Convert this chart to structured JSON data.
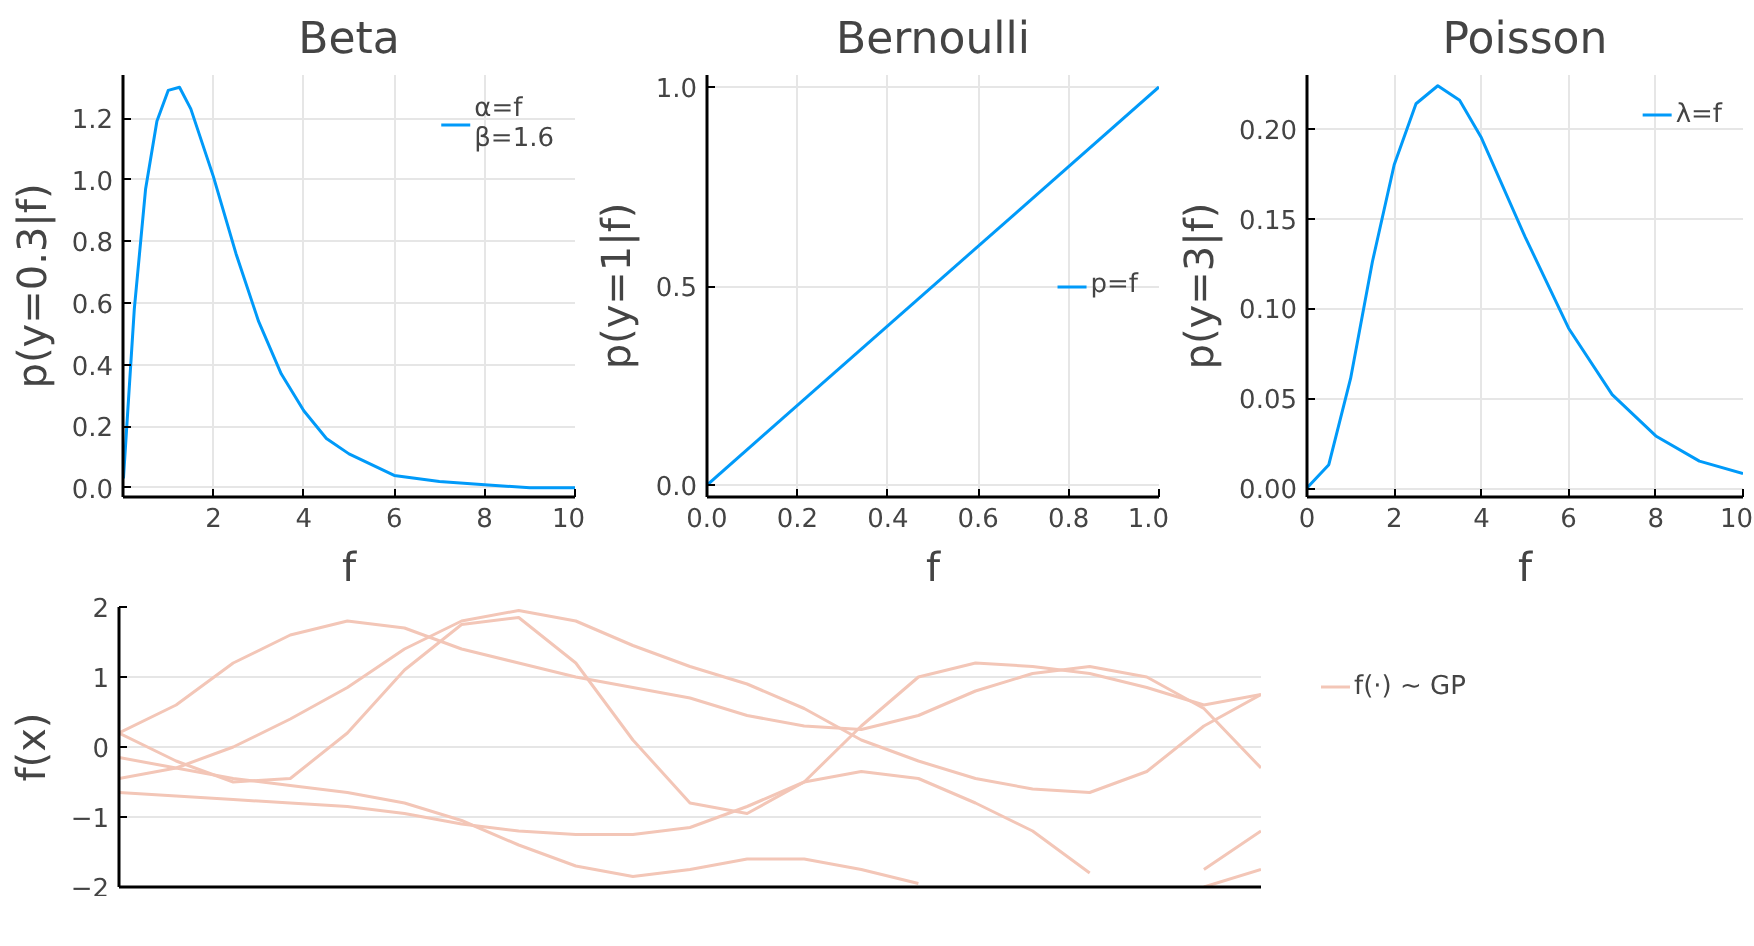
{
  "chart_data": [
    {
      "type": "line",
      "title": "Beta",
      "xlabel": "f",
      "ylabel": "p(y=0.3|f)",
      "xlim": [
        0,
        10
      ],
      "ylim": [
        -0.03,
        1.34
      ],
      "xticks": [
        2,
        4,
        6,
        8,
        10
      ],
      "yticks": [
        {
          "value": 0,
          "label": "0.0"
        },
        {
          "value": 0.2,
          "label": "0.2"
        },
        {
          "value": 0.4,
          "label": "0.4"
        },
        {
          "value": 0.6,
          "label": "0.6"
        },
        {
          "value": 0.8,
          "label": "0.8"
        },
        {
          "value": 1,
          "label": "1.0"
        },
        {
          "value": 1.2,
          "label": "1.2"
        }
      ],
      "grid": true,
      "legend": "top right",
      "x": [
        0.01,
        0.25,
        0.5,
        0.75,
        1,
        1.25,
        1.5,
        2,
        2.5,
        3,
        3.5,
        4,
        4.5,
        5,
        6,
        7,
        8,
        9,
        10
      ],
      "series": [
        {
          "name": "α=f\nβ=1.6",
          "color": "#009af9",
          "values": [
            0.03,
            0.58,
            0.97,
            1.19,
            1.29,
            1.3,
            1.23,
            1.01,
            0.76,
            0.54,
            0.37,
            0.25,
            0.16,
            0.11,
            0.04,
            0.02,
            0.01,
            0.0,
            0.0
          ]
        }
      ]
    },
    {
      "type": "line",
      "title": "Bernoulli",
      "xlabel": "f",
      "ylabel": "p(y=1|f)",
      "xlim": [
        0,
        1
      ],
      "ylim": [
        -0.03,
        1.03
      ],
      "xticks": [
        {
          "value": 0,
          "label": "0.0"
        },
        {
          "value": 0.2,
          "label": "0.2"
        },
        {
          "value": 0.4,
          "label": "0.4"
        },
        {
          "value": 0.6,
          "label": "0.6"
        },
        {
          "value": 0.8,
          "label": "0.8"
        },
        {
          "value": 1,
          "label": "1.0"
        }
      ],
      "yticks": [
        {
          "value": 0,
          "label": "0.0"
        },
        {
          "value": 0.5,
          "label": "0.5"
        },
        {
          "value": 1,
          "label": "1.0"
        }
      ],
      "grid": true,
      "legend": "center right",
      "x": [
        0,
        1
      ],
      "series": [
        {
          "name": "p=f",
          "color": "#009af9",
          "values": [
            0,
            1
          ]
        }
      ]
    },
    {
      "type": "line",
      "title": "Poisson",
      "xlabel": "f",
      "ylabel": "p(y=3|f)",
      "xlim": [
        0,
        10
      ],
      "ylim": [
        -0.005,
        0.23
      ],
      "xticks": [
        0,
        2,
        4,
        6,
        8,
        10
      ],
      "yticks": [
        {
          "value": 0,
          "label": "0.00"
        },
        {
          "value": 0.05,
          "label": "0.05"
        },
        {
          "value": 0.1,
          "label": "0.10"
        },
        {
          "value": 0.15,
          "label": "0.15"
        },
        {
          "value": 0.2,
          "label": "0.20"
        }
      ],
      "grid": true,
      "legend": "top right",
      "x": [
        0,
        0.5,
        1,
        1.5,
        2,
        2.5,
        3,
        3.5,
        4,
        5,
        6,
        7,
        8,
        9,
        10
      ],
      "series": [
        {
          "name": "λ=f",
          "color": "#009af9",
          "values": [
            0,
            0.013,
            0.061,
            0.126,
            0.18,
            0.214,
            0.224,
            0.216,
            0.195,
            0.14,
            0.089,
            0.052,
            0.029,
            0.015,
            0.008
          ]
        }
      ]
    },
    {
      "type": "line",
      "ylabel": "f(x)",
      "ylim": [
        -2,
        2
      ],
      "yticks": [
        {
          "value": -2,
          "label": "−2"
        },
        {
          "value": -1,
          "label": "−1"
        },
        0,
        1,
        2
      ],
      "grid": "y",
      "legend": "right",
      "tick_labels": "y",
      "categories": [
        null,
        null,
        null,
        null,
        null,
        null,
        null,
        null,
        null,
        null,
        null,
        null,
        null,
        null,
        null,
        null,
        null,
        null,
        null,
        null,
        null
      ],
      "series": [
        {
          "name": "f(·) ~ GP",
          "color": "#f3c6b7",
          "values": [
            0.2,
            -0.2,
            -0.5,
            -0.45,
            0.2,
            1.1,
            1.75,
            1.85,
            1.2,
            0.1,
            -0.8,
            -0.95,
            -0.5,
            0.3,
            1.0,
            1.2,
            1.15,
            1.05,
            0.85,
            0.6,
            0.75
          ]
        },
        {
          "color": "#f3c6b7",
          "values": [
            0.2,
            0.6,
            1.2,
            1.6,
            1.8,
            1.7,
            1.4,
            1.2,
            1.0,
            0.85,
            0.7,
            0.45,
            0.3,
            0.25,
            0.45,
            0.8,
            1.05,
            1.15,
            1.0,
            0.55,
            -0.3
          ]
        },
        {
          "color": "#f3c6b7",
          "values": [
            -0.45,
            -0.3,
            0.0,
            0.4,
            0.85,
            1.4,
            1.8,
            1.95,
            1.8,
            1.45,
            1.15,
            0.9,
            0.55,
            0.1,
            -0.2,
            -0.45,
            -0.6,
            -0.65,
            -0.35,
            0.3,
            0.75
          ]
        },
        {
          "color": "#f3c6b7",
          "values": [
            -0.15,
            -0.3,
            -0.45,
            -0.55,
            -0.65,
            -0.8,
            -1.05,
            -1.4,
            -1.7,
            -1.85,
            -1.75,
            -1.6,
            -1.6,
            -1.75,
            -1.95,
            null,
            null,
            null,
            null,
            -2.0,
            -1.75
          ]
        },
        {
          "color": "#f3c6b7",
          "values": [
            -0.65,
            -0.7,
            -0.75,
            -0.8,
            -0.85,
            -0.95,
            -1.1,
            -1.2,
            -1.25,
            -1.25,
            -1.15,
            -0.85,
            -0.5,
            -0.35,
            -0.45,
            -0.8,
            -1.2,
            -1.8,
            null,
            -1.75,
            -1.2
          ]
        }
      ]
    }
  ]
}
